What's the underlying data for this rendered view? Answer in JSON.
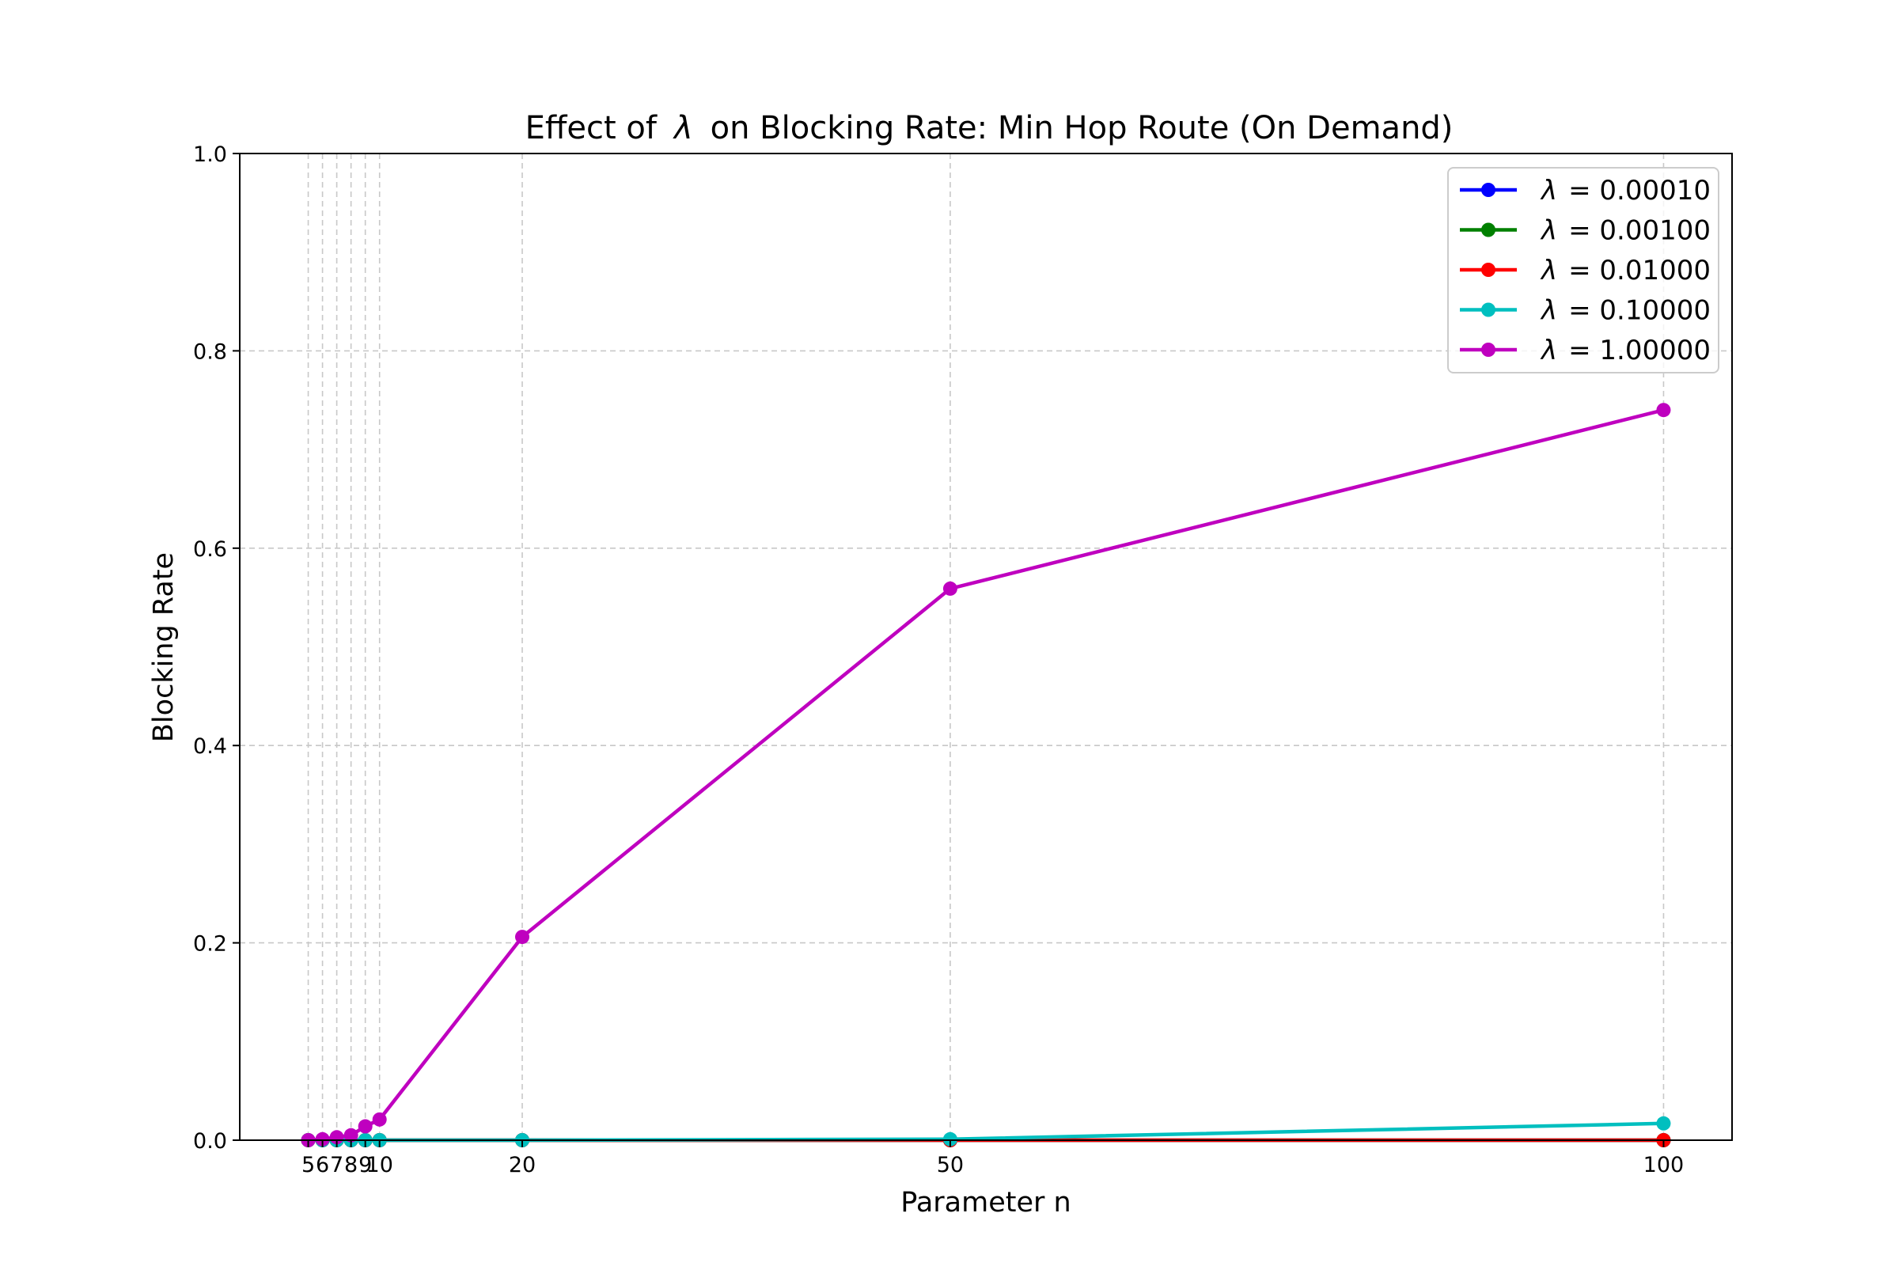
{
  "chart_data": {
    "type": "line",
    "title_prefix": "Effect of",
    "title_symbol": "λ",
    "title_suffix": "on Blocking Rate: Min Hop Route (On Demand)",
    "xlabel": "Parameter n",
    "ylabel": "Blocking Rate",
    "x": [
      5,
      6,
      7,
      8,
      9,
      10,
      20,
      50,
      100
    ],
    "xticks": [
      5,
      6,
      7,
      8,
      9,
      10,
      20,
      50,
      100
    ],
    "xlim": [
      0.2,
      104.8
    ],
    "ylim": [
      0.0,
      1.0
    ],
    "yticks": [
      0.0,
      0.2,
      0.4,
      0.6,
      0.8,
      1.0
    ],
    "ytick_labels": [
      "0.0",
      "0.2",
      "0.4",
      "0.6",
      "0.8",
      "1.0"
    ],
    "grid": true,
    "legend_position": "top-right",
    "legend_symbol": "λ",
    "series": [
      {
        "name": "= 0.00010",
        "color": "#0000ff",
        "values": [
          0,
          0,
          0,
          0,
          0,
          0,
          0,
          0,
          0
        ]
      },
      {
        "name": "= 0.00100",
        "color": "#008000",
        "values": [
          0,
          0,
          0,
          0,
          0,
          0,
          0,
          0,
          0
        ]
      },
      {
        "name": "= 0.01000",
        "color": "#ff0000",
        "values": [
          0,
          0,
          0,
          0,
          0,
          0,
          0,
          0,
          0
        ]
      },
      {
        "name": "= 0.10000",
        "color": "#00bfbf",
        "values": [
          0,
          0,
          0,
          0,
          0,
          0,
          0,
          0.001,
          0.017
        ]
      },
      {
        "name": "= 1.00000",
        "color": "#bf00bf",
        "values": [
          0,
          0.001,
          0.003,
          0.005,
          0.014,
          0.021,
          0.206,
          0.559,
          0.74
        ]
      }
    ]
  }
}
